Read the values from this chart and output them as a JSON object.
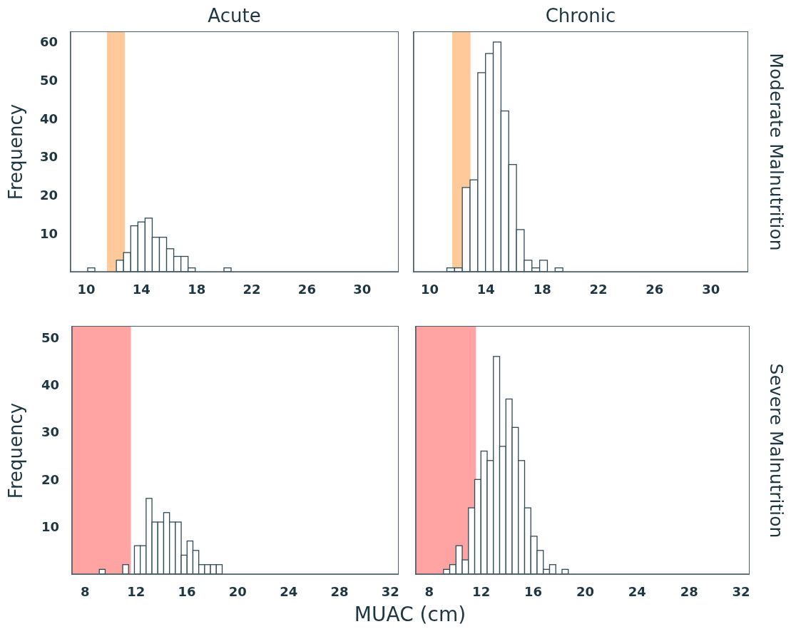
{
  "chart_data": [
    {
      "type": "histogram",
      "title": "Acute",
      "ylabel": "Frequency",
      "bins": [
        10.1,
        10.62,
        11.14,
        11.66,
        12.18,
        12.7,
        13.22,
        13.74,
        14.26,
        14.78,
        15.3,
        15.82,
        16.34,
        16.86,
        17.38,
        17.9,
        18.42,
        18.94,
        19.46,
        19.98,
        20.5
      ],
      "values": [
        1,
        0,
        0,
        0,
        3,
        5,
        12,
        13,
        14,
        9,
        9,
        6,
        4,
        4,
        1,
        0,
        0,
        0,
        0,
        1
      ],
      "color": "#ffffff",
      "xlim": [
        8.86,
        32.6
      ],
      "xticks": [
        10,
        14,
        18,
        22,
        26,
        30
      ],
      "ylim": [
        0,
        62.6
      ],
      "yticks": [
        10,
        20,
        30,
        40,
        50,
        60
      ],
      "bands": [
        {
          "axis": "x",
          "from": 11.5,
          "to": 12.8,
          "color": "#ffc999"
        }
      ]
    },
    {
      "type": "histogram",
      "title": "Chronic",
      "y2label": "Moderate Malnutrition",
      "tick_labels": "x",
      "bins": [
        11.24,
        11.79,
        12.34,
        12.89,
        13.44,
        13.99,
        14.54,
        15.09,
        15.64,
        16.19,
        16.74,
        17.29,
        17.84,
        18.39,
        18.94,
        19.49
      ],
      "values": [
        1,
        1,
        22,
        24,
        52,
        57,
        60,
        42,
        28,
        11,
        3,
        1,
        3,
        0,
        1
      ],
      "color": "#ffffff",
      "xlim": [
        8.86,
        32.6
      ],
      "xticks": [
        10,
        14,
        18,
        22,
        26,
        30
      ],
      "ylim": [
        0,
        62.6
      ],
      "yticks": [
        10,
        20,
        30,
        40,
        50,
        60
      ],
      "bands": [
        {
          "axis": "x",
          "from": 11.6,
          "to": 12.9,
          "color": "#ffc999"
        }
      ]
    },
    {
      "type": "histogram",
      "ylabel": "Frequency",
      "xlabel": "MUAC (cm)",
      "bins": [
        9.12,
        9.58,
        10.04,
        10.5,
        10.96,
        11.42,
        11.88,
        12.34,
        12.8,
        13.26,
        13.72,
        14.18,
        14.64,
        15.1,
        15.56,
        16.02,
        16.48,
        16.94,
        17.4,
        17.86,
        18.32,
        18.78
      ],
      "values": [
        1,
        0,
        0,
        0,
        2,
        0,
        6,
        6,
        16,
        11,
        11,
        13,
        11,
        11,
        4,
        7,
        5,
        2,
        2,
        2,
        2
      ],
      "color": "#ffffff",
      "xlim": [
        6.97,
        32.6
      ],
      "xticks": [
        8,
        12,
        16,
        20,
        24,
        28,
        32
      ],
      "ylim": [
        0,
        52.3
      ],
      "yticks": [
        10,
        20,
        30,
        40,
        50
      ],
      "bands": [
        {
          "axis": "x",
          "from": 6.97,
          "to": 11.6,
          "color": "#ffa3a3"
        }
      ]
    },
    {
      "type": "histogram",
      "y2label": "Severe Malnutrition",
      "tick_labels": "x",
      "bins": [
        9.12,
        9.6,
        10.08,
        10.56,
        11.04,
        11.52,
        12.0,
        12.48,
        12.96,
        13.44,
        13.92,
        14.4,
        14.88,
        15.36,
        15.84,
        16.32,
        16.8,
        17.28,
        17.76,
        18.24,
        18.72
      ],
      "values": [
        1,
        2,
        6,
        3,
        14,
        20,
        26,
        24,
        46,
        27,
        37,
        31,
        24,
        14,
        8,
        5,
        1,
        2,
        0,
        1
      ],
      "color": "#ffffff",
      "xlim": [
        6.97,
        32.6
      ],
      "xticks": [
        8,
        12,
        16,
        20,
        24,
        28,
        32
      ],
      "ylim": [
        0,
        52.3
      ],
      "yticks": [
        10,
        20,
        30,
        40,
        50
      ],
      "bands": [
        {
          "axis": "x",
          "from": 6.97,
          "to": 11.6,
          "color": "#ffa3a3"
        }
      ]
    }
  ]
}
